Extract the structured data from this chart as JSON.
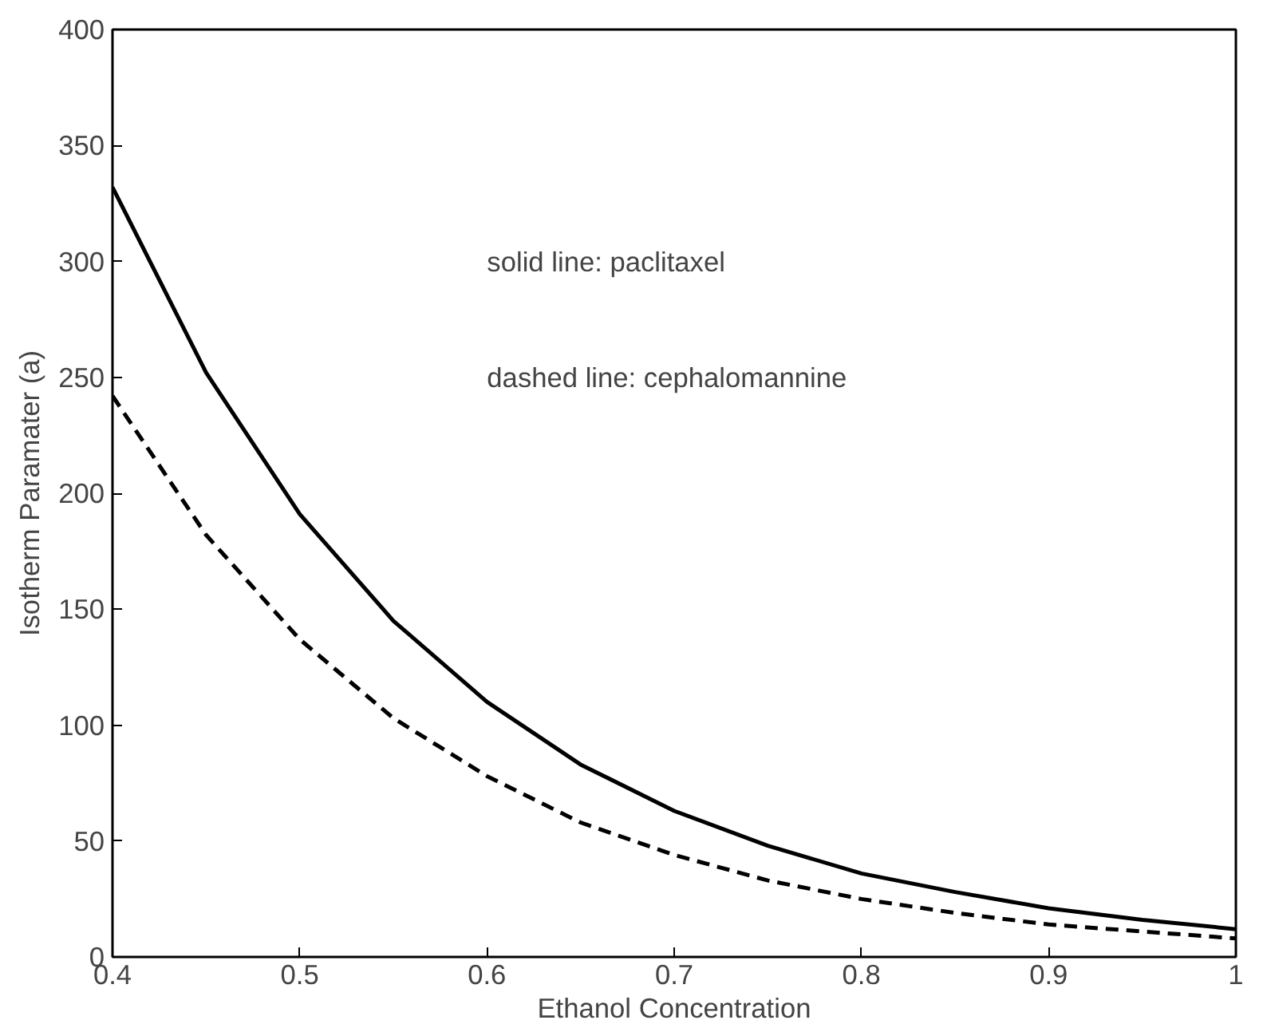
{
  "chart_data": {
    "type": "line",
    "xlabel": "Ethanol Concentration",
    "ylabel": "Isotherm Paramater (a)",
    "x": [
      0.4,
      0.45,
      0.5,
      0.55,
      0.6,
      0.65,
      0.7,
      0.75,
      0.8,
      0.85,
      0.9,
      0.95,
      1.0
    ],
    "series": [
      {
        "color": "#000000",
        "line_style": "solid",
        "values": [
          332,
          252,
          191,
          145,
          110,
          83,
          63,
          48,
          36,
          28,
          21,
          16,
          12
        ]
      },
      {
        "color": "#000000",
        "line_style": "dashed",
        "values": [
          242,
          182,
          137,
          103,
          78,
          58,
          44,
          33,
          25,
          19,
          14,
          11,
          8
        ]
      }
    ],
    "annotations": [
      "solid line: paclitaxel",
      "dashed line: cephalomannine"
    ],
    "xlim": [
      0.4,
      1.0
    ],
    "ylim": [
      0,
      400
    ],
    "xticks": [
      0.4,
      0.5,
      0.6,
      0.7,
      0.8,
      0.9,
      1
    ],
    "yticks": [
      0,
      50,
      100,
      150,
      200,
      250,
      300,
      350,
      400
    ],
    "grid": false
  }
}
